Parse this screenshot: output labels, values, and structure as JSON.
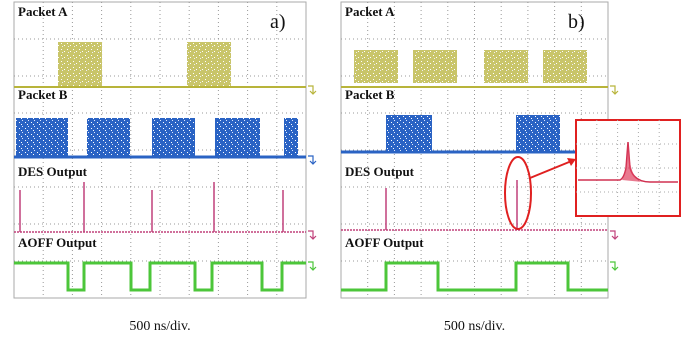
{
  "panels": [
    {
      "letter": "a)",
      "traces": [
        "Packet A",
        "Packet B",
        "DES Output",
        "AOFF Output"
      ],
      "caption": "500 ns/div."
    },
    {
      "letter": "b)",
      "traces": [
        "Packet A",
        "Packet B",
        "DES Output",
        "AOFF Output"
      ],
      "caption": "500 ns/div."
    }
  ]
}
